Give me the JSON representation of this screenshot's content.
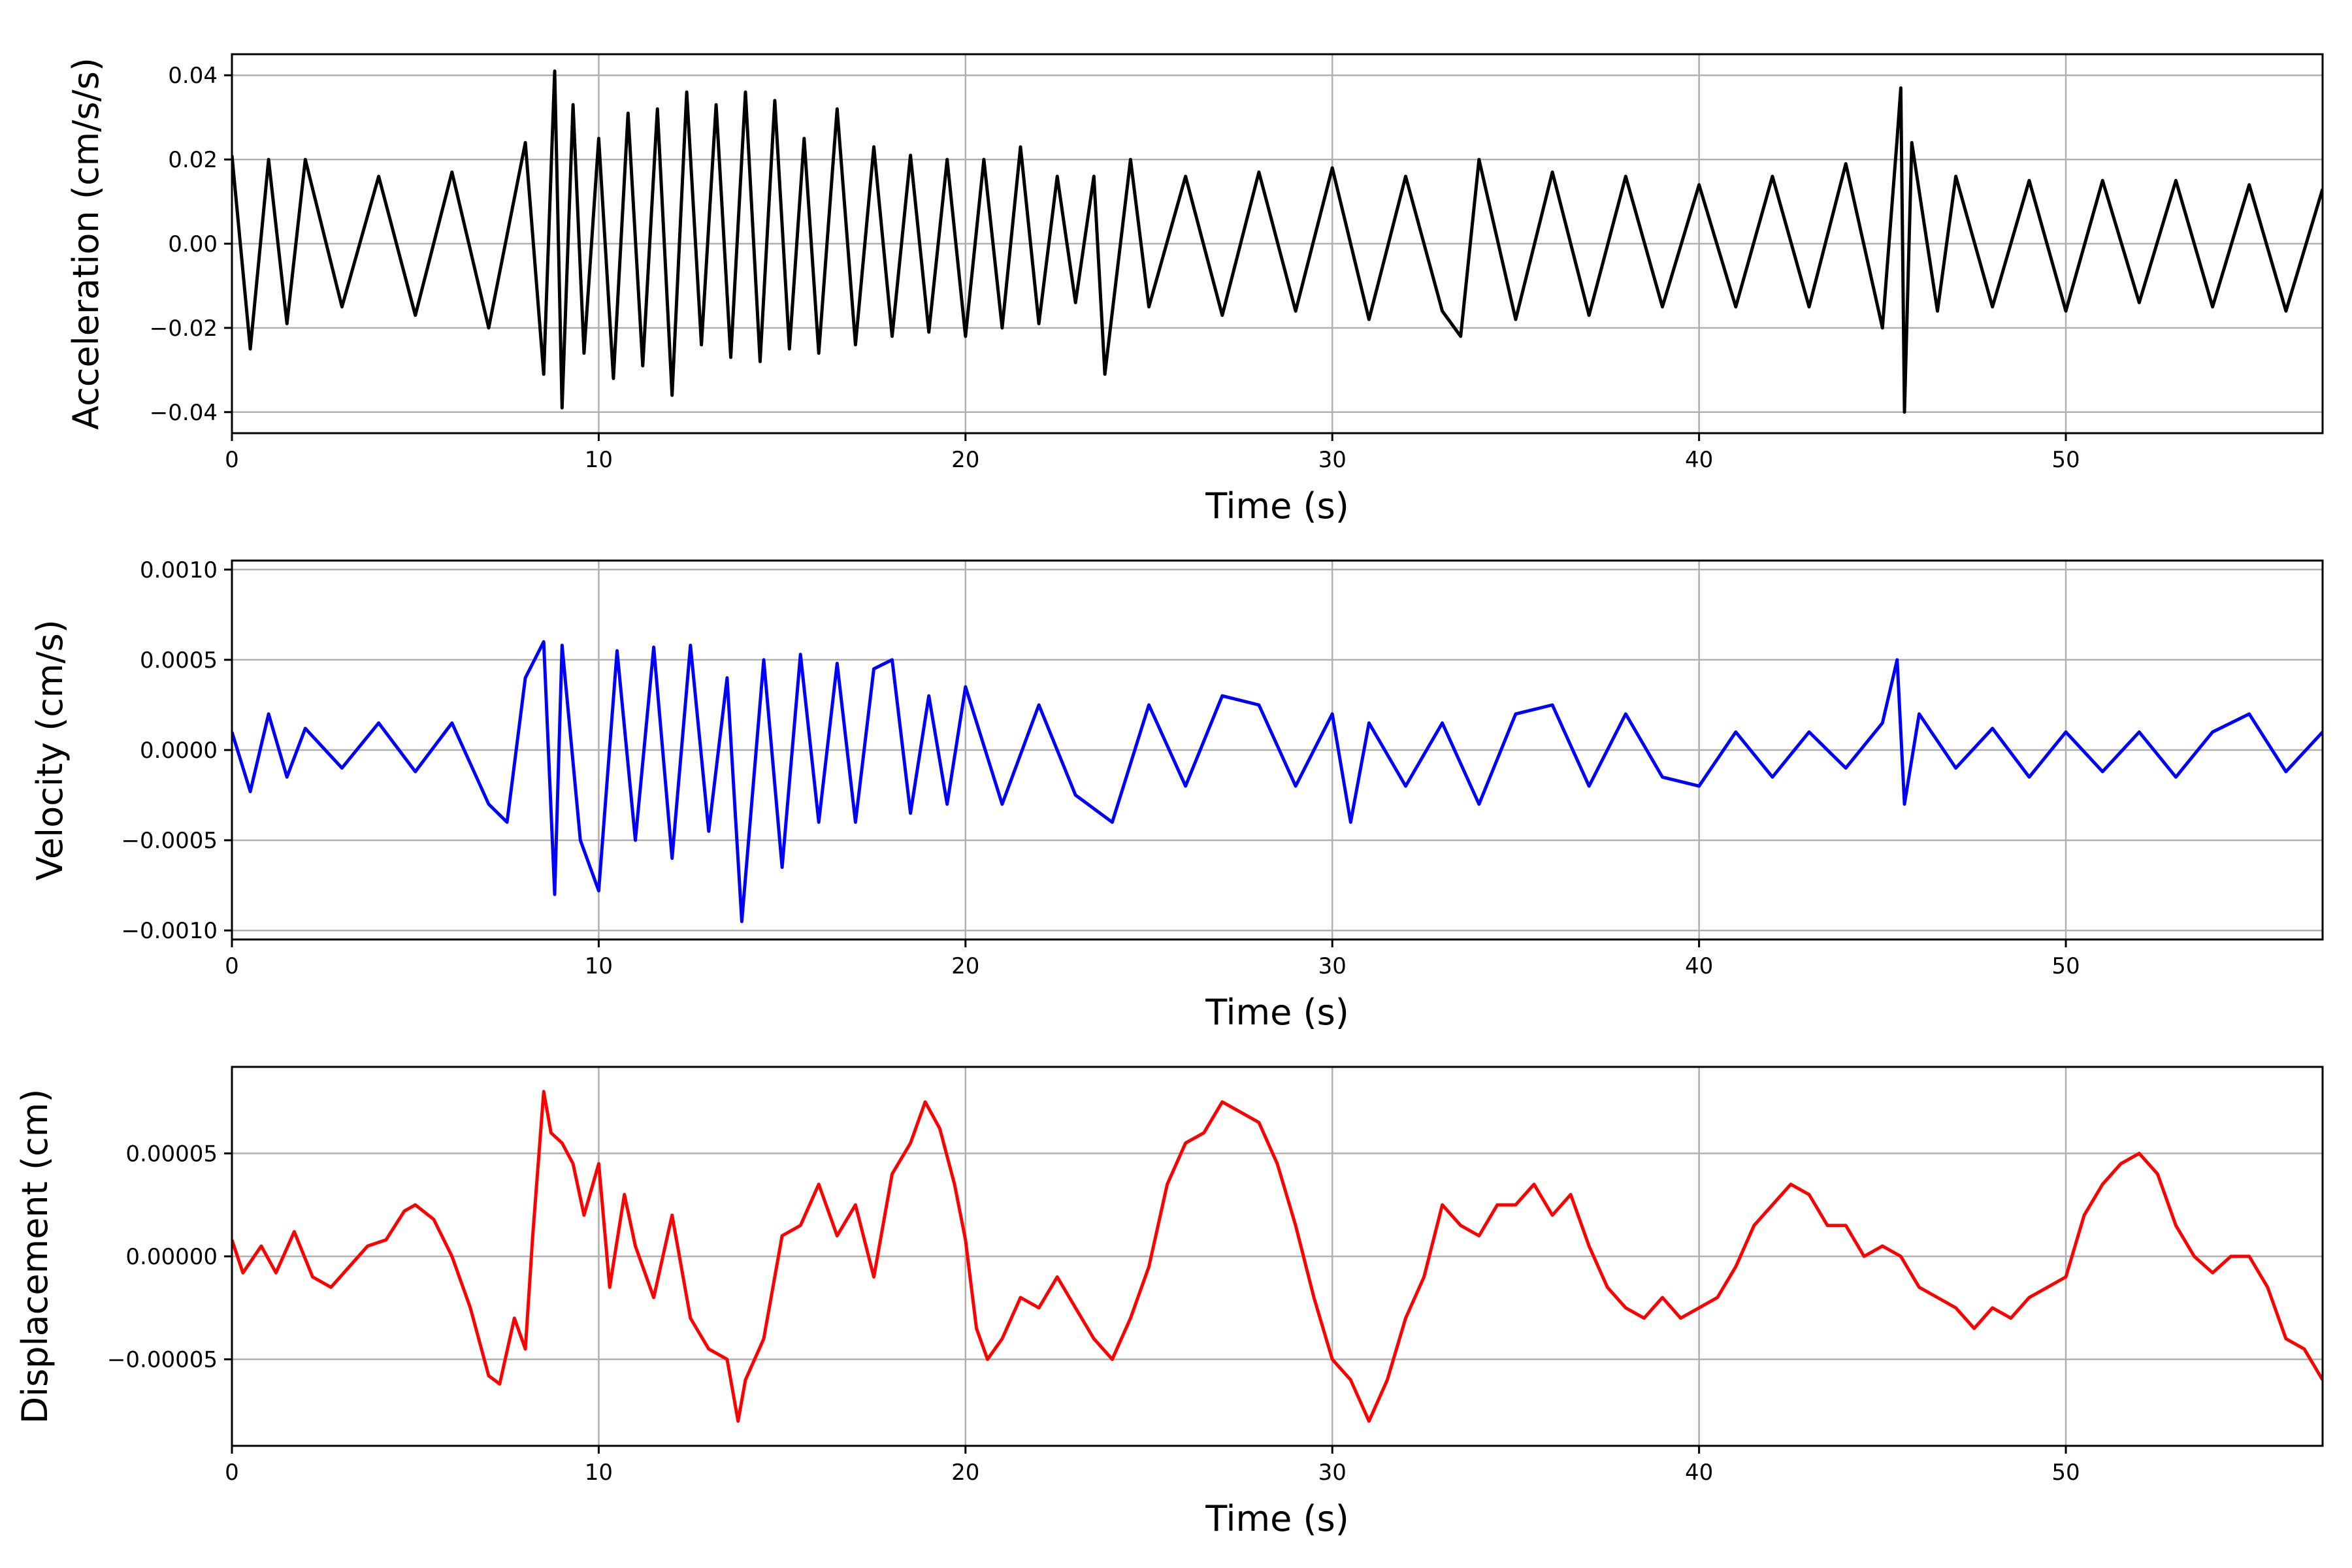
{
  "chart_data": [
    {
      "type": "line",
      "title": "",
      "xlabel": "Time (s)",
      "ylabel": "Acceleration (cm/s/s)",
      "xlim": [
        0,
        57
      ],
      "ylim": [
        -0.045,
        0.045
      ],
      "xticks": [
        0,
        10,
        20,
        30,
        40,
        50
      ],
      "xtick_labels": [
        "0",
        "10",
        "20",
        "30",
        "40",
        "50"
      ],
      "yticks": [
        -0.04,
        -0.02,
        0.0,
        0.02,
        0.04
      ],
      "ytick_labels": [
        "−0.04",
        "−0.02",
        "0.00",
        "0.02",
        "0.04"
      ],
      "grid": true,
      "color": "#000000",
      "series": [
        {
          "x": [
            0,
            0.5,
            1.0,
            1.5,
            2.0,
            3.0,
            4.0,
            5.0,
            6.0,
            7.0,
            8.0,
            8.5,
            8.8,
            9.0,
            9.3,
            9.6,
            10.0,
            10.4,
            10.8,
            11.2,
            11.6,
            12.0,
            12.4,
            12.8,
            13.2,
            13.6,
            14.0,
            14.4,
            14.8,
            15.2,
            15.6,
            16.0,
            16.5,
            17.0,
            17.5,
            18.0,
            18.5,
            19.0,
            19.5,
            20.0,
            20.5,
            21.0,
            21.5,
            22.0,
            22.5,
            23.0,
            23.5,
            23.8,
            24.5,
            25.0,
            26.0,
            27.0,
            28.0,
            29.0,
            30.0,
            31.0,
            32.0,
            33.0,
            33.5,
            34.0,
            35.0,
            36.0,
            37.0,
            38.0,
            39.0,
            40.0,
            41.0,
            42.0,
            43.0,
            44.0,
            45.0,
            45.4,
            45.5,
            45.6,
            45.8,
            46.5,
            47.0,
            48.0,
            49.0,
            50.0,
            51.0,
            52.0,
            53.0,
            54.0,
            55.0,
            56.0,
            57.0
          ],
          "y": [
            0.021,
            -0.025,
            0.02,
            -0.019,
            0.02,
            -0.015,
            0.016,
            -0.017,
            0.017,
            -0.02,
            0.024,
            -0.031,
            0.041,
            -0.039,
            0.033,
            -0.026,
            0.025,
            -0.032,
            0.031,
            -0.029,
            0.032,
            -0.036,
            0.036,
            -0.024,
            0.033,
            -0.027,
            0.036,
            -0.028,
            0.034,
            -0.025,
            0.025,
            -0.026,
            0.032,
            -0.024,
            0.023,
            -0.022,
            0.021,
            -0.021,
            0.02,
            -0.022,
            0.02,
            -0.02,
            0.023,
            -0.019,
            0.016,
            -0.014,
            0.016,
            -0.031,
            0.02,
            -0.015,
            0.016,
            -0.017,
            0.017,
            -0.016,
            0.018,
            -0.018,
            0.016,
            -0.016,
            -0.022,
            0.02,
            -0.018,
            0.017,
            -0.017,
            0.016,
            -0.015,
            0.014,
            -0.015,
            0.016,
            -0.015,
            0.019,
            -0.02,
            0.025,
            0.037,
            -0.04,
            0.024,
            -0.016,
            0.016,
            -0.015,
            0.015,
            -0.016,
            0.015,
            -0.014,
            0.015,
            -0.015,
            0.014,
            -0.016,
            0.013
          ]
        }
      ]
    },
    {
      "type": "line",
      "title": "",
      "xlabel": "Time (s)",
      "ylabel": "Velocity (cm/s)",
      "xlim": [
        0,
        57
      ],
      "ylim": [
        -0.00105,
        0.00105
      ],
      "xticks": [
        0,
        10,
        20,
        30,
        40,
        50
      ],
      "xtick_labels": [
        "0",
        "10",
        "20",
        "30",
        "40",
        "50"
      ],
      "yticks": [
        -0.001,
        -0.0005,
        0.0,
        0.0005,
        0.001
      ],
      "ytick_labels": [
        "−0.0010",
        "−0.0005",
        "0.0000",
        "0.0005",
        "0.0010"
      ],
      "grid": true,
      "color": "#0000ff",
      "series": [
        {
          "x": [
            0,
            0.5,
            1.0,
            1.5,
            2.0,
            3.0,
            4.0,
            5.0,
            6.0,
            7.0,
            7.5,
            8.0,
            8.5,
            8.8,
            9.0,
            9.5,
            10.0,
            10.5,
            11.0,
            11.5,
            12.0,
            12.5,
            13.0,
            13.5,
            13.9,
            14.5,
            15.0,
            15.5,
            16.0,
            16.5,
            17.0,
            17.5,
            18.0,
            18.5,
            19.0,
            19.5,
            20.0,
            21.0,
            22.0,
            23.0,
            24.0,
            25.0,
            26.0,
            27.0,
            28.0,
            29.0,
            30.0,
            30.5,
            31.0,
            32.0,
            33.0,
            34.0,
            35.0,
            36.0,
            37.0,
            38.0,
            39.0,
            40.0,
            41.0,
            42.0,
            43.0,
            44.0,
            45.0,
            45.4,
            45.6,
            46.0,
            47.0,
            48.0,
            49.0,
            50.0,
            51.0,
            52.0,
            53.0,
            54.0,
            55.0,
            56.0,
            57.0
          ],
          "y": [
            0.0001,
            -0.00023,
            0.0002,
            -0.00015,
            0.00012,
            -0.0001,
            0.00015,
            -0.00012,
            0.00015,
            -0.0003,
            -0.0004,
            0.0004,
            0.0006,
            -0.0008,
            0.00058,
            -0.0005,
            -0.00078,
            0.00055,
            -0.0005,
            0.00057,
            -0.0006,
            0.00058,
            -0.00045,
            0.0004,
            -0.00095,
            0.0005,
            -0.00065,
            0.00053,
            -0.0004,
            0.00048,
            -0.0004,
            0.00045,
            0.0005,
            -0.00035,
            0.0003,
            -0.0003,
            0.00035,
            -0.0003,
            0.00025,
            -0.00025,
            -0.0004,
            0.00025,
            -0.0002,
            0.0003,
            0.00025,
            -0.0002,
            0.0002,
            -0.0004,
            0.00015,
            -0.0002,
            0.00015,
            -0.0003,
            0.0002,
            0.00025,
            -0.0002,
            0.0002,
            -0.00015,
            -0.0002,
            0.0001,
            -0.00015,
            0.0001,
            -0.0001,
            0.00015,
            0.0005,
            -0.0003,
            0.0002,
            -0.0001,
            0.00012,
            -0.00015,
            0.0001,
            -0.00012,
            0.0001,
            -0.00015,
            0.0001,
            0.0002,
            -0.00012,
            0.0001
          ]
        }
      ]
    },
    {
      "type": "line",
      "title": "",
      "xlabel": "Time (s)",
      "ylabel": "Displacement (cm)",
      "xlim": [
        0,
        57
      ],
      "ylim": [
        -9.2e-05,
        9.2e-05
      ],
      "xticks": [
        0,
        10,
        20,
        30,
        40,
        50
      ],
      "xtick_labels": [
        "0",
        "10",
        "20",
        "30",
        "40",
        "50"
      ],
      "yticks": [
        -5e-05,
        0.0,
        5e-05
      ],
      "ytick_labels": [
        "−0.00005",
        "0.00000",
        "0.00005"
      ],
      "grid": true,
      "color": "#ff0000",
      "series": [
        {
          "x": [
            0,
            0.3,
            0.8,
            1.2,
            1.7,
            2.2,
            2.7,
            3.2,
            3.7,
            4.2,
            4.7,
            5.0,
            5.5,
            6.0,
            6.5,
            7.0,
            7.3,
            7.7,
            8.0,
            8.2,
            8.5,
            8.7,
            9.0,
            9.3,
            9.6,
            10.0,
            10.3,
            10.7,
            11.0,
            11.5,
            12.0,
            12.5,
            13.0,
            13.5,
            13.8,
            14.0,
            14.5,
            15.0,
            15.5,
            16.0,
            16.5,
            17.0,
            17.5,
            18.0,
            18.5,
            18.9,
            19.3,
            19.7,
            20.0,
            20.3,
            20.6,
            21.0,
            21.5,
            22.0,
            22.5,
            23.0,
            23.5,
            24.0,
            24.5,
            25.0,
            25.5,
            26.0,
            26.5,
            27.0,
            27.5,
            28.0,
            28.5,
            29.0,
            29.5,
            30.0,
            30.5,
            31.0,
            31.5,
            32.0,
            32.5,
            33.0,
            33.5,
            34.0,
            34.5,
            35.0,
            35.5,
            36.0,
            36.5,
            37.0,
            37.5,
            38.0,
            38.5,
            39.0,
            39.5,
            40.0,
            40.5,
            41.0,
            41.5,
            42.0,
            42.5,
            43.0,
            43.5,
            44.0,
            44.5,
            45.0,
            45.5,
            46.0,
            46.5,
            47.0,
            47.5,
            48.0,
            48.5,
            49.0,
            49.5,
            50.0,
            50.5,
            51.0,
            51.5,
            52.0,
            52.5,
            53.0,
            53.5,
            54.0,
            54.5,
            55.0,
            55.5,
            56.0,
            56.5,
            57.0
          ],
          "y": [
            8e-06,
            -8e-06,
            5e-06,
            -8e-06,
            1.2e-05,
            -1e-05,
            -1.5e-05,
            -5e-06,
            5e-06,
            8e-06,
            2.2e-05,
            2.5e-05,
            1.8e-05,
            0.0,
            -2.5e-05,
            -5.8e-05,
            -6.2e-05,
            -3e-05,
            -4.5e-05,
            1e-05,
            8e-05,
            6e-05,
            5.5e-05,
            4.5e-05,
            2e-05,
            4.5e-05,
            -1.5e-05,
            3e-05,
            5e-06,
            -2e-05,
            2e-05,
            -3e-05,
            -4.5e-05,
            -5e-05,
            -8e-05,
            -6e-05,
            -4e-05,
            1e-05,
            1.5e-05,
            3.5e-05,
            1e-05,
            2.5e-05,
            -1e-05,
            4e-05,
            5.5e-05,
            7.5e-05,
            6.2e-05,
            3.5e-05,
            8e-06,
            -3.5e-05,
            -5e-05,
            -4e-05,
            -2e-05,
            -2.5e-05,
            -1e-05,
            -2.5e-05,
            -4e-05,
            -5e-05,
            -3e-05,
            -5e-06,
            3.5e-05,
            5.5e-05,
            6e-05,
            7.5e-05,
            7e-05,
            6.5e-05,
            4.5e-05,
            1.5e-05,
            -2e-05,
            -5e-05,
            -6e-05,
            -8e-05,
            -6e-05,
            -3e-05,
            -1e-05,
            2.5e-05,
            1.5e-05,
            1e-05,
            2.5e-05,
            2.5e-05,
            3.5e-05,
            2e-05,
            3e-05,
            5e-06,
            -1.5e-05,
            -2.5e-05,
            -3e-05,
            -2e-05,
            -3e-05,
            -2.5e-05,
            -2e-05,
            -5e-06,
            1.5e-05,
            2.5e-05,
            3.5e-05,
            3e-05,
            1.5e-05,
            1.5e-05,
            0.0,
            5e-06,
            0.0,
            -1.5e-05,
            -2e-05,
            -2.5e-05,
            -3.5e-05,
            -2.5e-05,
            -3e-05,
            -2e-05,
            -1.5e-05,
            -1e-05,
            2e-05,
            3.5e-05,
            4.5e-05,
            5e-05,
            4e-05,
            1.5e-05,
            0.0,
            -8e-06,
            0.0,
            0.0,
            -1.5e-05,
            -4e-05,
            -4.5e-05,
            -6e-05
          ]
        }
      ]
    }
  ]
}
